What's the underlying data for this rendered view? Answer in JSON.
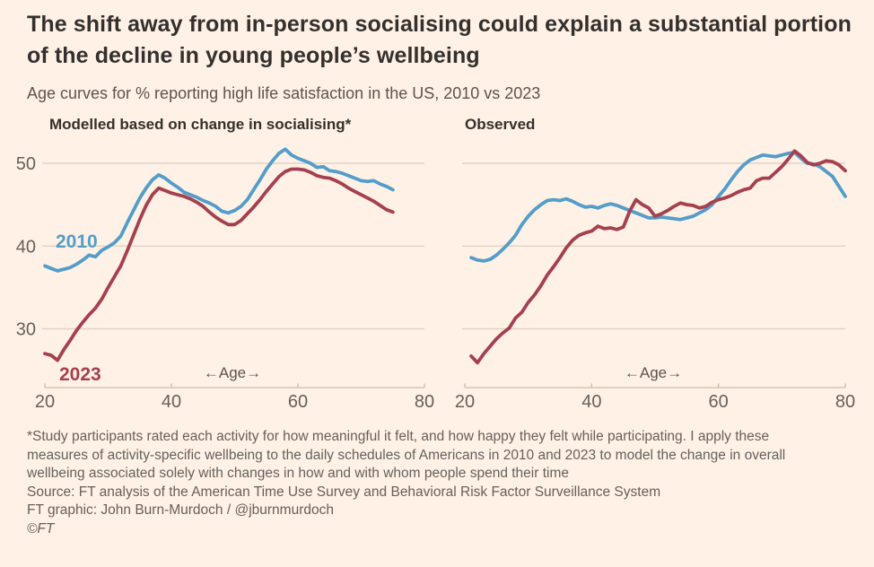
{
  "header": {
    "title": "The shift away from in-person socialising could explain a substantial portion of the decline in young people’s wellbeing",
    "subtitle": "Age curves for % reporting high life satisfaction in the US, 2010 vs 2023"
  },
  "colors": {
    "background": "#FFF1E5",
    "line_2010": "#539DCB",
    "line_2023": "#A5414E",
    "grid": "#E0D3C6",
    "axis": "#C9BCAE",
    "text_dark": "#33302E",
    "text_muted": "#66605C"
  },
  "chart_data": [
    {
      "type": "line",
      "panel": "modelled",
      "title": "Modelled based on change in socialising*",
      "xlabel": "←Age→",
      "ylabel": "",
      "x_ticks": [
        20,
        40,
        60,
        80
      ],
      "y_ticks": [
        30,
        40,
        50
      ],
      "xlim": [
        20,
        80
      ],
      "ylim": [
        25,
        53
      ],
      "grid": "horizontal",
      "legend_position": "inline-labels",
      "series": [
        {
          "name": "2010",
          "color": "#539DCB",
          "age_start": 20,
          "values": [
            37.6,
            37.3,
            37.0,
            37.2,
            37.4,
            37.8,
            38.3,
            38.9,
            38.7,
            39.5,
            39.9,
            40.4,
            41.2,
            42.8,
            44.3,
            45.8,
            47.0,
            48.0,
            48.6,
            48.2,
            47.6,
            47.1,
            46.5,
            46.2,
            45.9,
            45.5,
            45.2,
            44.8,
            44.2,
            44.0,
            44.3,
            44.8,
            45.6,
            46.8,
            48.0,
            49.3,
            50.3,
            51.2,
            51.7,
            51.0,
            50.6,
            50.3,
            50.0,
            49.5,
            49.6,
            49.1,
            49.0,
            48.8,
            48.5,
            48.2,
            47.9,
            47.8,
            47.9,
            47.5,
            47.2,
            46.8
          ]
        },
        {
          "name": "2023",
          "color": "#A5414E",
          "age_start": 20,
          "values": [
            27.0,
            26.8,
            26.2,
            27.5,
            28.6,
            29.8,
            30.8,
            31.7,
            32.5,
            33.6,
            35.0,
            36.3,
            37.6,
            39.4,
            41.3,
            43.2,
            44.9,
            46.2,
            47.0,
            46.7,
            46.4,
            46.2,
            46.0,
            45.7,
            45.3,
            44.8,
            44.1,
            43.5,
            43.0,
            42.6,
            42.6,
            43.1,
            43.9,
            44.7,
            45.6,
            46.6,
            47.5,
            48.4,
            49.0,
            49.3,
            49.3,
            49.2,
            48.9,
            48.5,
            48.3,
            48.2,
            47.9,
            47.5,
            47.0,
            46.6,
            46.2,
            45.8,
            45.4,
            44.9,
            44.4,
            44.1
          ]
        }
      ]
    },
    {
      "type": "line",
      "panel": "observed",
      "title": "Observed",
      "xlabel": "←Age→",
      "ylabel": "",
      "x_ticks": [
        20,
        40,
        60,
        80
      ],
      "y_ticks": [
        30,
        40,
        50
      ],
      "xlim": [
        20,
        80
      ],
      "ylim": [
        25,
        53
      ],
      "grid": "horizontal",
      "legend_position": "none",
      "series": [
        {
          "name": "2010",
          "color": "#539DCB",
          "age_start": 21,
          "values": [
            38.6,
            38.3,
            38.2,
            38.4,
            38.9,
            39.6,
            40.4,
            41.3,
            42.6,
            43.6,
            44.4,
            45.0,
            45.5,
            45.6,
            45.5,
            45.7,
            45.4,
            45.0,
            44.7,
            44.8,
            44.6,
            44.9,
            45.1,
            44.9,
            44.6,
            44.3,
            44.0,
            43.7,
            43.4,
            43.4,
            43.5,
            43.4,
            43.3,
            43.2,
            43.4,
            43.6,
            44.0,
            44.4,
            45.0,
            46.0,
            46.9,
            48.0,
            49.0,
            49.8,
            50.4,
            50.7,
            51.0,
            50.9,
            50.8,
            51.0,
            51.2,
            51.3,
            50.6,
            50.0,
            49.9,
            49.6,
            49.0,
            48.4,
            47.2,
            46.0
          ]
        },
        {
          "name": "2023",
          "color": "#A5414E",
          "age_start": 21,
          "values": [
            26.7,
            25.9,
            27.0,
            27.9,
            28.8,
            29.5,
            30.1,
            31.3,
            32.0,
            33.2,
            34.1,
            35.2,
            36.5,
            37.5,
            38.6,
            39.8,
            40.7,
            41.3,
            41.6,
            41.8,
            42.4,
            42.1,
            42.2,
            42.0,
            42.3,
            44.2,
            45.6,
            45.0,
            44.6,
            43.6,
            43.9,
            44.3,
            44.8,
            45.2,
            45.0,
            44.9,
            44.6,
            44.8,
            45.3,
            45.6,
            45.8,
            46.1,
            46.5,
            46.8,
            47.0,
            47.9,
            48.2,
            48.2,
            48.9,
            49.6,
            50.5,
            51.5,
            50.9,
            50.1,
            49.8,
            50.0,
            50.3,
            50.2,
            49.8,
            49.1
          ]
        }
      ]
    }
  ],
  "footer": {
    "footnote_lines": [
      "*Study participants rated each activity for how meaningful it felt, and how happy they felt while participating. I apply these",
      "measures of activity-specific wellbeing to the daily schedules of Americans in 2010 and 2023 to model the change in overall",
      "wellbeing associated solely with changes in how and with whom people spend their time"
    ],
    "source": "Source: FT analysis of the American Time Use Survey and Behavioral Risk Factor Surveillance System",
    "credit": "FT graphic: John Burn-Murdoch / @jburnmurdoch",
    "copyright": "©FT"
  }
}
